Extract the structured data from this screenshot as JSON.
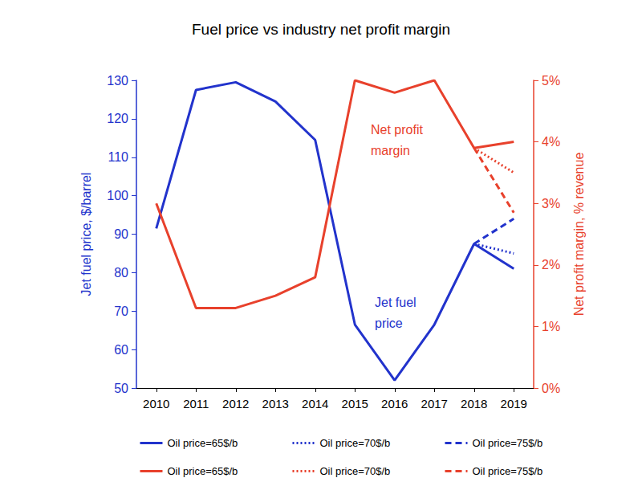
{
  "chart_data": {
    "type": "line",
    "title": "Fuel price vs industry net profit margin",
    "y_label": "Jet fuel price, $/barrel",
    "y2_label": "Net profit margin, % revenue",
    "categories": [
      "2010",
      "2011",
      "2012",
      "2013",
      "2014",
      "2015",
      "2016",
      "2017",
      "2018",
      "2019"
    ],
    "series": [
      {
        "name": "Oil price=65$/b",
        "color": "#2233cc",
        "line_style": "solid",
        "marker": "none",
        "values": [
          91.5,
          127.5,
          129.5,
          124.5,
          114.5,
          66.5,
          52,
          66.5,
          87.5,
          81
        ]
      },
      {
        "name": "Oil price=70$/b",
        "color": "#2233cc",
        "line_style": "dotted",
        "marker": "none",
        "values": [
          null,
          null,
          null,
          null,
          null,
          null,
          null,
          null,
          87.5,
          85
        ]
      },
      {
        "name": "Oil price=75$/b",
        "color": "#2233cc",
        "line_style": "dashed",
        "marker": "none",
        "values": [
          null,
          null,
          null,
          null,
          null,
          null,
          null,
          null,
          87.5,
          94
        ]
      },
      {
        "name": "Oil price=65$/b",
        "color": "#e8412c",
        "line_style": "solid",
        "marker": "none",
        "axis": "y2",
        "values": [
          3.0,
          1.3,
          1.3,
          1.5,
          1.8,
          5.0,
          4.8,
          5.0,
          3.9,
          4.0
        ]
      },
      {
        "name": "Oil price=70$/b",
        "color": "#e8412c",
        "line_style": "dotted",
        "marker": "none",
        "axis": "y2",
        "values": [
          null,
          null,
          null,
          null,
          null,
          null,
          null,
          null,
          3.9,
          3.5
        ]
      },
      {
        "name": "Oil price=75$/b",
        "color": "#e8412c",
        "line_style": "dashed",
        "marker": "none",
        "axis": "y2",
        "values": [
          null,
          null,
          null,
          null,
          null,
          null,
          null,
          null,
          3.9,
          2.85
        ]
      }
    ],
    "ylim": [
      50,
      130
    ],
    "yticks": [
      50,
      60,
      70,
      80,
      90,
      100,
      110,
      120,
      130
    ],
    "y2lim": [
      0,
      5
    ],
    "y2ticks": [
      {
        "value": 0,
        "label": "0%"
      },
      {
        "value": 1,
        "label": "1%"
      },
      {
        "value": 2,
        "label": "2%"
      },
      {
        "value": 3,
        "label": "3%"
      },
      {
        "value": 4,
        "label": "4%"
      },
      {
        "value": 5,
        "label": "5%"
      }
    ],
    "grid": false,
    "legend": "bottom",
    "annotations": [
      {
        "text": "Net profit\nmargin",
        "color": "#e8412c"
      },
      {
        "text": "Jet fuel\nprice",
        "color": "#2233cc"
      }
    ]
  }
}
